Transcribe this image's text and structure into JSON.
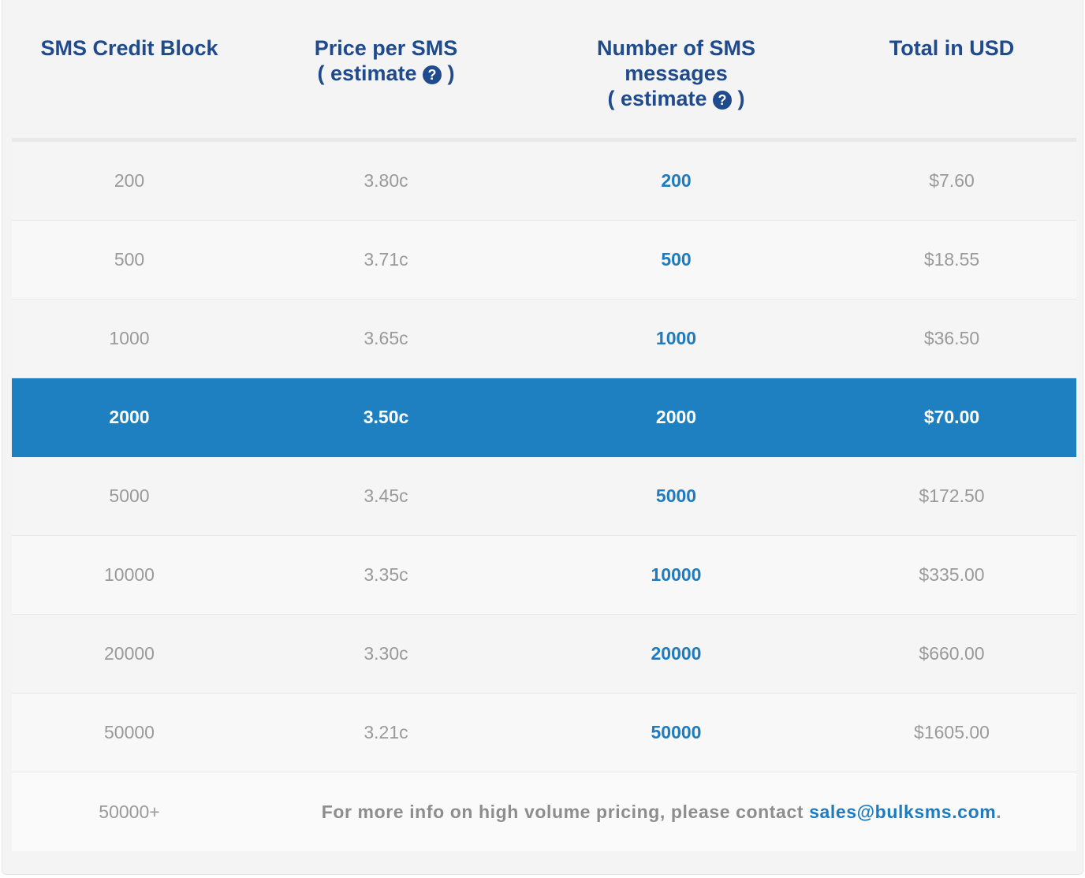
{
  "headers": {
    "credit_block": "SMS Credit Block",
    "price_line1": "Price per SMS",
    "price_line2_pre": "( estimate",
    "price_line2_post": ")",
    "count_line1": "Number of SMS",
    "count_line2": "messages",
    "count_line3_pre": "( estimate",
    "count_line3_post": ")",
    "total": "Total in USD",
    "help_glyph": "?"
  },
  "rows": [
    {
      "block": "200",
      "price": "3.80c",
      "count": "200",
      "total": "$7.60"
    },
    {
      "block": "500",
      "price": "3.71c",
      "count": "500",
      "total": "$18.55"
    },
    {
      "block": "1000",
      "price": "3.65c",
      "count": "1000",
      "total": "$36.50"
    },
    {
      "block": "2000",
      "price": "3.50c",
      "count": "2000",
      "total": "$70.00",
      "selected": true
    },
    {
      "block": "5000",
      "price": "3.45c",
      "count": "5000",
      "total": "$172.50"
    },
    {
      "block": "10000",
      "price": "3.35c",
      "count": "10000",
      "total": "$335.00"
    },
    {
      "block": "20000",
      "price": "3.30c",
      "count": "20000",
      "total": "$660.00"
    },
    {
      "block": "50000",
      "price": "3.21c",
      "count": "50000",
      "total": "$1605.00"
    }
  ],
  "footer": {
    "block": "50000+",
    "note": "For more info on high volume pricing, please contact ",
    "email": "sales@bulksms.com",
    "end": "."
  },
  "colors": {
    "header_text": "#1f4a8c",
    "accent": "#1e80c1",
    "muted_text": "#9a9a9a"
  }
}
